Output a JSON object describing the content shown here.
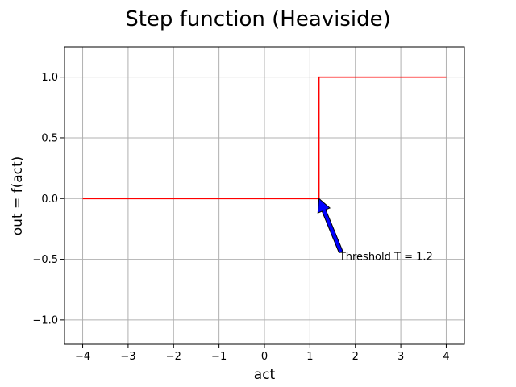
{
  "chart_data": {
    "type": "line",
    "title": "Step function (Heaviside)",
    "xlabel": "act",
    "ylabel": "out = f(act)",
    "xlim": [
      -4.4,
      4.4
    ],
    "ylim": [
      -1.2,
      1.25
    ],
    "xticks": [
      -4,
      -3,
      -2,
      -1,
      0,
      1,
      2,
      3,
      4
    ],
    "xtick_labels": [
      "−4",
      "−3",
      "−2",
      "−1",
      "0",
      "1",
      "2",
      "3",
      "4"
    ],
    "yticks": [
      -1.0,
      -0.5,
      0.0,
      0.5,
      1.0
    ],
    "ytick_labels": [
      "−1.0",
      "−0.5",
      "0.0",
      "0.5",
      "1.0"
    ],
    "grid": true,
    "series": [
      {
        "color": "#ff0000",
        "x": [
          -4,
          1.2,
          1.2,
          4
        ],
        "y": [
          0,
          0,
          1,
          1
        ]
      }
    ],
    "annotation": {
      "text": "Threshold T = 1.2",
      "point": [
        1.2,
        0
      ],
      "text_position": [
        1.7,
        -0.5
      ],
      "arrow_color": "#0000ff"
    }
  }
}
